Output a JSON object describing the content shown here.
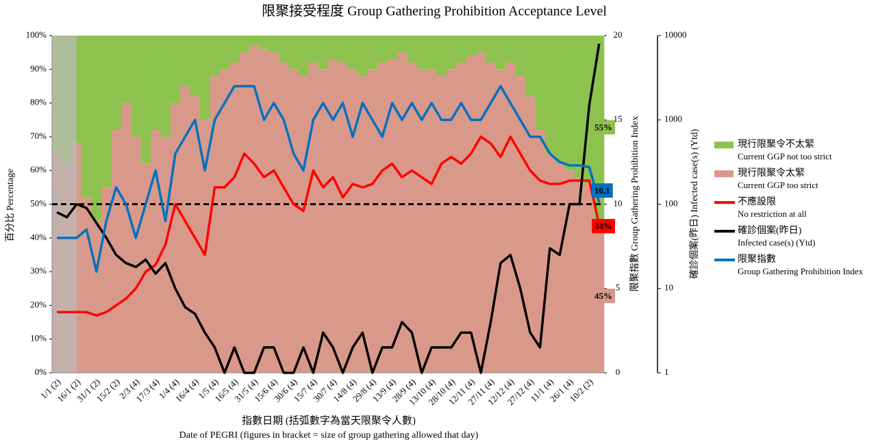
{
  "chart_data": {
    "type": "combo",
    "title": "限聚接受程度 Group Gathering Prohibition Acceptance Level",
    "x_title": "指數日期 (括弧數字為當天限聚令人數)",
    "x_subtitle": "Date of PEGRI (figures in bracket = size of group gathering allowed that day)",
    "y_title": "百分比 Percentage",
    "y2_title": "限聚指數 Group Gathering Prohibition Index",
    "y3_title": "確診個案(昨日) Infected case(s) (Ytd)",
    "categories": [
      "1/1 (2)",
      null,
      "16/1 (2)",
      null,
      "31/1 (2)",
      null,
      "15/2 (2)",
      null,
      "2/3 (4)",
      null,
      "17/3 (4)",
      null,
      "1/4 (4)",
      null,
      "16/4 (4)",
      null,
      "1/5 (4)",
      null,
      "16/5 (4)",
      null,
      "31/5 (4)",
      null,
      "15/6 (4)",
      null,
      "30/6 (4)",
      null,
      "15/7 (4)",
      null,
      "30/7 (4)",
      null,
      "14/8 (4)",
      null,
      "29/8 (4)",
      null,
      "13/9 (4)",
      null,
      "28/9 (4)",
      null,
      "13/10 (4)",
      null,
      "28/10 (4)",
      null,
      "12/11 (4)",
      null,
      "27/11 (4)",
      null,
      "12/12 (4)",
      null,
      "27/12 (4)",
      null,
      "11/1 (4)",
      null,
      "26/1 (4)",
      null,
      "10/2 (2)",
      null
    ],
    "series": [
      {
        "name": "現行限聚令不太緊",
        "name_en": "Current GGP not too strict",
        "kind": "bar",
        "color": "#8dc24f",
        "values": [
          35,
          38,
          32,
          48,
          55,
          45,
          28,
          20,
          30,
          38,
          28,
          30,
          20,
          15,
          18,
          25,
          12,
          10,
          8,
          5,
          3,
          4,
          5,
          8,
          10,
          12,
          8,
          10,
          7,
          8,
          10,
          12,
          10,
          8,
          7,
          5,
          8,
          10,
          10,
          12,
          10,
          8,
          6,
          5,
          8,
          10,
          8,
          12,
          18,
          28,
          35,
          38,
          40,
          42,
          44,
          55
        ],
        "value_labels": [
          null,
          null,
          null,
          null,
          null,
          null,
          null,
          null,
          null,
          null,
          null,
          null,
          null,
          null,
          null,
          null,
          null,
          null,
          null,
          null,
          null,
          null,
          null,
          null,
          null,
          null,
          null,
          null,
          null,
          null,
          null,
          null,
          null,
          null,
          null,
          null,
          null,
          null,
          null,
          null,
          null,
          null,
          null,
          null,
          null,
          null,
          null,
          null,
          null,
          null,
          null,
          null,
          null,
          null,
          null,
          "55%"
        ]
      },
      {
        "name": "現行限聚令太緊",
        "name_en": "Current GGP too strict",
        "kind": "bar",
        "color": "#d9998a",
        "values": [
          65,
          62,
          68,
          52,
          45,
          55,
          72,
          80,
          70,
          62,
          72,
          70,
          80,
          85,
          82,
          75,
          88,
          90,
          92,
          95,
          97,
          96,
          95,
          92,
          90,
          88,
          92,
          90,
          93,
          92,
          90,
          88,
          90,
          92,
          93,
          95,
          92,
          90,
          90,
          88,
          90,
          92,
          94,
          95,
          92,
          90,
          92,
          88,
          82,
          72,
          65,
          62,
          60,
          58,
          56,
          45
        ],
        "value_labels": [
          null,
          null,
          null,
          null,
          null,
          null,
          null,
          null,
          null,
          null,
          null,
          null,
          null,
          null,
          null,
          null,
          null,
          null,
          null,
          null,
          null,
          null,
          null,
          null,
          null,
          null,
          null,
          null,
          null,
          null,
          null,
          null,
          null,
          null,
          null,
          null,
          null,
          null,
          null,
          null,
          null,
          null,
          null,
          null,
          null,
          null,
          null,
          null,
          null,
          null,
          null,
          null,
          null,
          null,
          null,
          "45%"
        ]
      },
      {
        "name": "不應設限",
        "name_en": "No restriction at all",
        "kind": "line",
        "color": "#ff0000",
        "values": [
          18,
          18,
          18,
          18,
          17,
          18,
          20,
          22,
          25,
          30,
          32,
          38,
          50,
          45,
          40,
          35,
          55,
          55,
          58,
          65,
          62,
          58,
          60,
          55,
          50,
          48,
          60,
          55,
          58,
          52,
          56,
          55,
          56,
          60,
          62,
          58,
          60,
          58,
          56,
          62,
          64,
          62,
          65,
          70,
          68,
          64,
          70,
          65,
          60,
          57,
          56,
          56,
          57,
          57,
          57,
          44
        ],
        "value_labels": [
          null,
          null,
          null,
          null,
          null,
          null,
          null,
          null,
          null,
          null,
          null,
          null,
          null,
          null,
          null,
          null,
          null,
          null,
          null,
          null,
          null,
          null,
          null,
          null,
          null,
          null,
          null,
          null,
          null,
          null,
          null,
          null,
          null,
          null,
          null,
          null,
          null,
          null,
          null,
          null,
          null,
          null,
          null,
          null,
          null,
          null,
          null,
          null,
          null,
          null,
          null,
          null,
          null,
          null,
          null,
          "44%"
        ]
      },
      {
        "name": "確診個案(昨日)",
        "name_en": "Infected case(s) (Ytd)",
        "kind": "line",
        "axis": "y3",
        "color": "#000000",
        "values": [
          80,
          70,
          100,
          90,
          60,
          40,
          25,
          20,
          18,
          22,
          15,
          20,
          10,
          6,
          5,
          3,
          2,
          1,
          2,
          1,
          1,
          2,
          2,
          1,
          1,
          2,
          1,
          3,
          2,
          1,
          2,
          3,
          1,
          2,
          2,
          4,
          3,
          1,
          2,
          2,
          2,
          3,
          3,
          1,
          4,
          20,
          25,
          10,
          3,
          2,
          30,
          25,
          100,
          100,
          1500,
          8000
        ]
      },
      {
        "name": "限聚指數",
        "name_en": "Group Gathering Prohibition Index",
        "kind": "line",
        "axis": "y2",
        "color": "#0070c0",
        "values": [
          8,
          8,
          8,
          8.5,
          6,
          9,
          11,
          10,
          8,
          10,
          12,
          9,
          13,
          14,
          15,
          12,
          15,
          16,
          17,
          17,
          17,
          15,
          16,
          15,
          13,
          12,
          15,
          16,
          15,
          16,
          14,
          16,
          15,
          14,
          16,
          15,
          16,
          15,
          16,
          15,
          15,
          16,
          15,
          15,
          16,
          17,
          16,
          15,
          14,
          14,
          13,
          12.5,
          12.3,
          12.3,
          12.2,
          10.1
        ]
      }
    ],
    "ylim": [
      0,
      100
    ],
    "yticks": [
      {
        "value": 0,
        "label": "0%"
      },
      {
        "value": 10,
        "label": "10%"
      },
      {
        "value": 20,
        "label": "20%"
      },
      {
        "value": 30,
        "label": "30%"
      },
      {
        "value": 40,
        "label": "40%"
      },
      {
        "value": 50,
        "label": "50%"
      },
      {
        "value": 60,
        "label": "60%"
      },
      {
        "value": 70,
        "label": "70%"
      },
      {
        "value": 80,
        "label": "80%"
      },
      {
        "value": 90,
        "label": "90%"
      },
      {
        "value": 100,
        "label": "100%"
      }
    ],
    "y2lim": [
      0,
      20
    ],
    "y2ticks": [
      0,
      5,
      10,
      15,
      20
    ],
    "y3lim": [
      1,
      10000
    ],
    "y3ticks": [
      1,
      10,
      100,
      1000,
      10000
    ],
    "y3log": true,
    "hline": 50
  }
}
